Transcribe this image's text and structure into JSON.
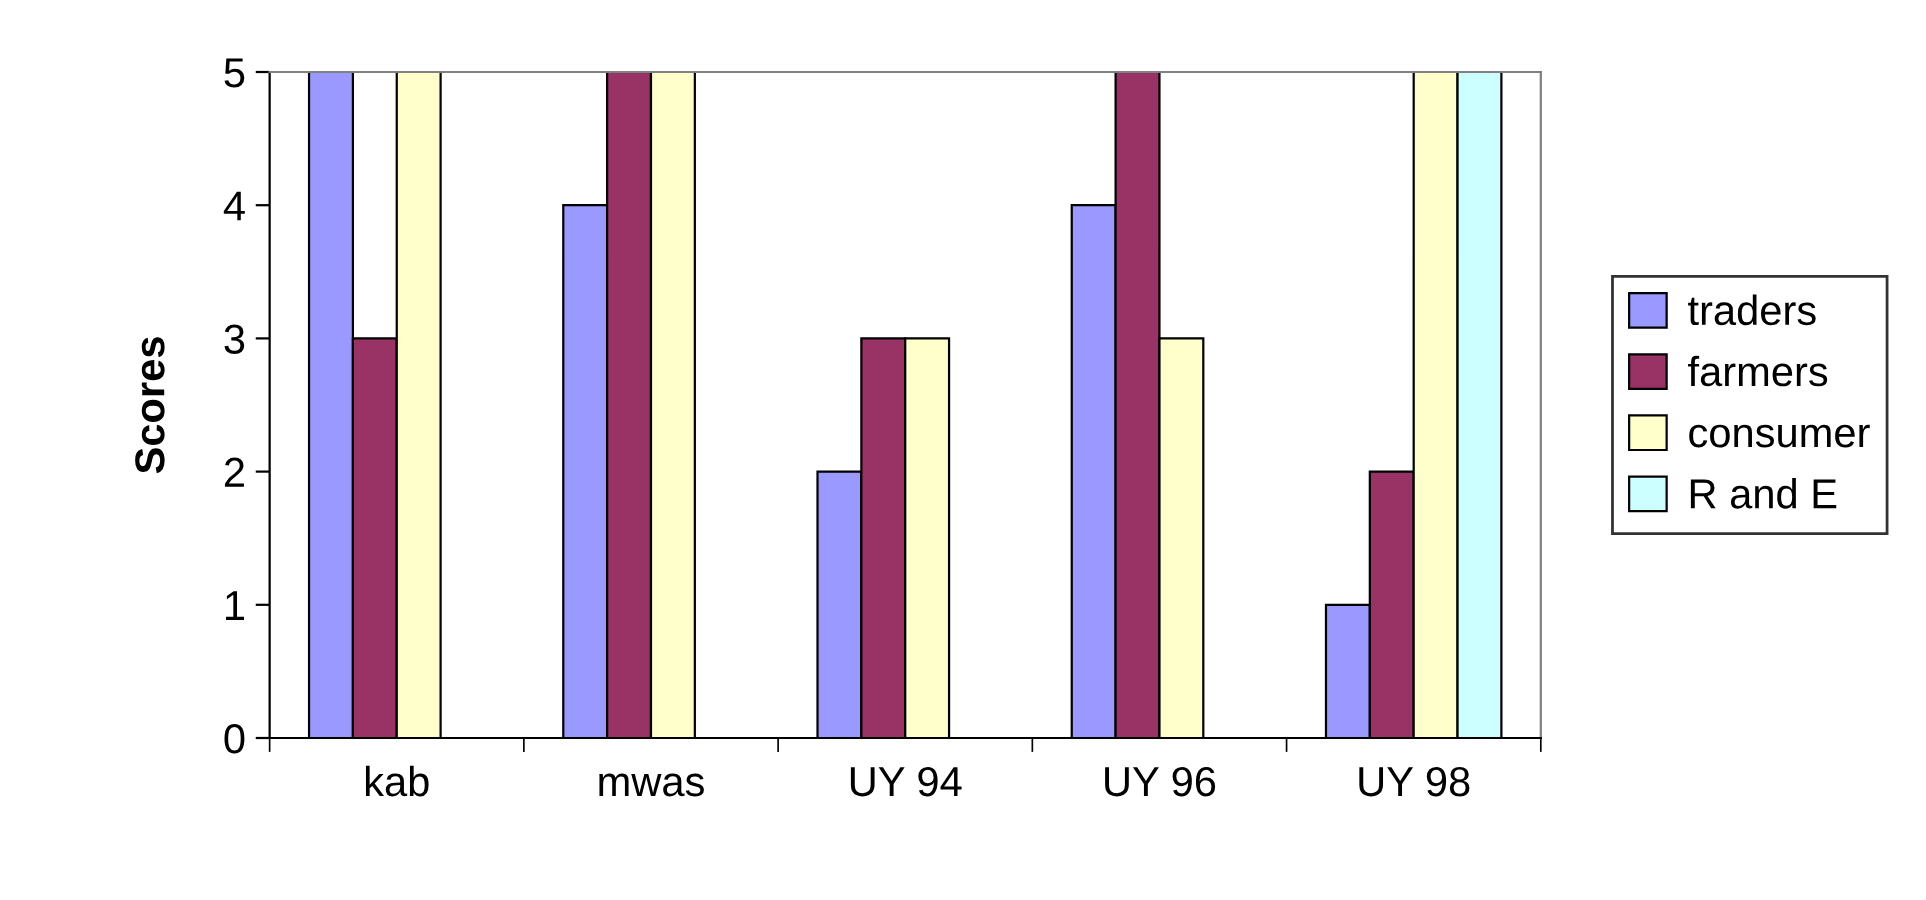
{
  "chart_data": {
    "type": "bar",
    "ylabel": "Scores",
    "categories": [
      "kab",
      "mwas",
      "UY 94",
      "UY 96",
      "UY 98"
    ],
    "series": [
      {
        "name": "traders",
        "color": "#9999ff",
        "values": [
          5,
          4,
          2,
          4,
          1
        ]
      },
      {
        "name": "farmers",
        "color": "#993366",
        "values": [
          3,
          5,
          3,
          5,
          2
        ]
      },
      {
        "name": "consumer",
        "color": "#ffffcc",
        "values": [
          5,
          5,
          3,
          3,
          5
        ]
      },
      {
        "name": "R and E",
        "color": "#ccffff",
        "values": [
          null,
          null,
          null,
          null,
          5
        ]
      }
    ],
    "ylim": [
      0,
      5
    ],
    "yticks": [
      0,
      1,
      2,
      3,
      4,
      5
    ],
    "grid": false,
    "legend": "right"
  }
}
